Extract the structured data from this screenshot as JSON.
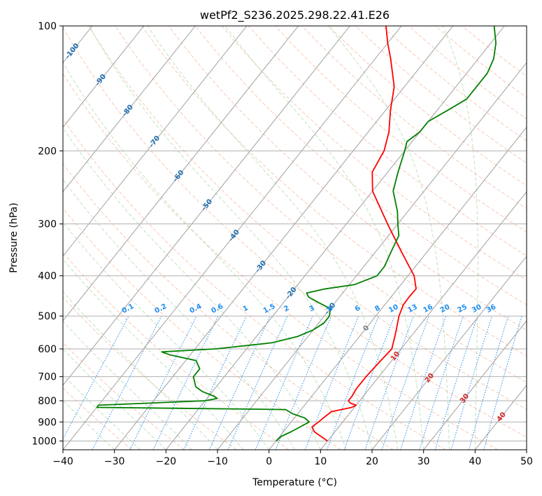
{
  "chart_data": {
    "type": "line",
    "title": "wetPf2_S236.2025.298.22.41.E26",
    "xlabel": "Temperature (°C)",
    "ylabel": "Pressure (hPa)",
    "xlim": [
      -40,
      50
    ],
    "ylim": [
      1050,
      100
    ],
    "y_scale": "log",
    "x_ticks": [
      -40,
      -30,
      -20,
      -10,
      0,
      10,
      20,
      30,
      40,
      50
    ],
    "y_ticks": [
      100,
      200,
      300,
      400,
      500,
      600,
      700,
      800,
      900,
      1000
    ],
    "grid": true,
    "skew_t": true,
    "colors": {
      "temperature": "#ff0000",
      "dewpoint": "#008000",
      "isotherm": "#a0a0a0",
      "dry_adiabat": "#f4a582",
      "moist_adiabat": "#a6d6a0",
      "mixing_ratio": "#1f8ef0",
      "isotherm_label": "#1f6fb0",
      "warm_label": "#d62728",
      "zero_label": "#808080"
    },
    "series": [
      {
        "name": "",
        "role": "temperature",
        "pressure": [
          1000,
          975,
          950,
          925,
          900,
          870,
          850,
          830,
          820,
          810,
          800,
          780,
          750,
          700,
          650,
          600,
          550,
          500,
          470,
          450,
          430,
          400,
          350,
          300,
          250,
          225,
          200,
          180,
          160,
          140,
          120,
          110,
          100
        ],
        "temperature": [
          10,
          8,
          6,
          4.8,
          5.3,
          5.8,
          6.2,
          9.5,
          10,
          8.5,
          7.8,
          7.8,
          7.5,
          7.5,
          7.8,
          8.2,
          6.5,
          4.5,
          3.6,
          3.5,
          3.6,
          1.2,
          -5,
          -12,
          -20,
          -23,
          -24,
          -26,
          -29,
          -32,
          -37,
          -40,
          -43
        ]
      },
      {
        "name": "",
        "role": "dewpoint",
        "pressure": [
          1000,
          975,
          950,
          925,
          900,
          880,
          860,
          840,
          830,
          820,
          810,
          800,
          790,
          780,
          760,
          740,
          700,
          670,
          640,
          620,
          610,
          600,
          580,
          560,
          540,
          520,
          500,
          480,
          460,
          450,
          440,
          430,
          420,
          400,
          380,
          350,
          320,
          300,
          280,
          250,
          225,
          200,
          190,
          180,
          170,
          160,
          150,
          140,
          130,
          120,
          110,
          100
        ],
        "temperature": [
          0,
          0.3,
          1.5,
          2.5,
          3.5,
          2,
          -1,
          -3,
          -40,
          -40,
          -30,
          -20,
          -18,
          -19,
          -22,
          -24,
          -26,
          -26,
          -28,
          -34,
          -36,
          -26,
          -16,
          -12,
          -10,
          -9,
          -9,
          -10,
          -14,
          -16,
          -17,
          -14,
          -9,
          -6,
          -6,
          -7,
          -8,
          -10,
          -12,
          -16,
          -18,
          -20,
          -21,
          -20,
          -20,
          -18,
          -16,
          -16,
          -16,
          -17,
          -19,
          -22
        ]
      }
    ],
    "isotherm_labels": [
      "-100",
      "-90",
      "-80",
      "-70",
      "-60",
      "-50",
      "-40",
      "-30",
      "-20",
      "-10"
    ],
    "isotherm_labels_warm": [
      "0",
      "10",
      "20",
      "30",
      "40"
    ],
    "mixing_ratio_labels": [
      "0.1",
      "0.2",
      "0.4",
      "0.6",
      "1",
      "1.5",
      "2",
      "3",
      "4",
      "6",
      "8",
      "10",
      "13",
      "16",
      "20",
      "25",
      "30",
      "36"
    ]
  }
}
